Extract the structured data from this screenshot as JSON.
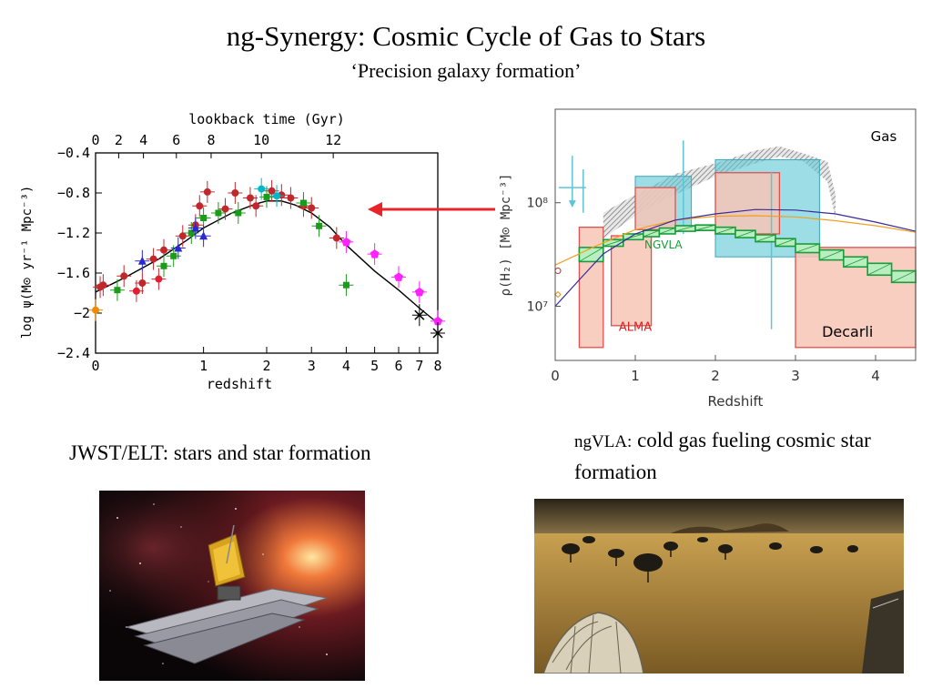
{
  "slide": {
    "title": "ng-Synergy: Cosmic Cycle of Gas to Stars",
    "subtitle": "‘Precision galaxy formation’",
    "left_caption": "JWST/ELT: stars and star formation",
    "right_caption_prefix": "ngVLA:",
    "right_caption_rest": " cold gas fueling cosmic star formation",
    "arrow_color": "#e8242b"
  },
  "chart_data": [
    {
      "type": "scatter",
      "title": "",
      "top_axis_label": "lookback time (Gyr)",
      "top_ticks": [
        "0",
        "2",
        "4",
        "6",
        "8",
        "10",
        "12"
      ],
      "top_tick_z": [
        0,
        0.16,
        0.36,
        0.68,
        1.1,
        1.9,
        3.6
      ],
      "xlabel": "redshift",
      "ylabel": "log ψ(M⊙ yr⁻¹ Mpc⁻³)",
      "xticks": [
        "0",
        "1",
        "2",
        "3",
        "4",
        "5",
        "6",
        "7",
        "8"
      ],
      "yticks": [
        "−0.4",
        "−0.8",
        "−1.2",
        "−1.6",
        "−2",
        "−2.4"
      ],
      "ytick_values": [
        -0.4,
        -0.8,
        -1.2,
        -1.6,
        -2.0,
        -2.4
      ],
      "ylim": [
        -2.4,
        -0.4
      ],
      "curve": [
        [
          0,
          -1.79
        ],
        [
          0.2,
          -1.65
        ],
        [
          0.5,
          -1.46
        ],
        [
          0.8,
          -1.27
        ],
        [
          1.0,
          -1.15
        ],
        [
          1.4,
          -1.0
        ],
        [
          1.8,
          -0.91
        ],
        [
          2.0,
          -0.88
        ],
        [
          2.3,
          -0.88
        ],
        [
          2.6,
          -0.92
        ],
        [
          3.0,
          -1.0
        ],
        [
          3.5,
          -1.14
        ],
        [
          4.0,
          -1.32
        ],
        [
          5.0,
          -1.58
        ],
        [
          6.0,
          -1.77
        ],
        [
          7.0,
          -1.95
        ],
        [
          8.0,
          -2.1
        ]
      ],
      "series": [
        {
          "color": "#c0282b",
          "marker": "circle",
          "points": [
            [
              0.03,
              -1.74
            ],
            [
              0.05,
              -1.72
            ],
            [
              0.2,
              -1.63
            ],
            [
              0.45,
              -1.46
            ],
            [
              0.55,
              -1.37
            ],
            [
              0.75,
              -1.23
            ],
            [
              0.9,
              -1.12
            ],
            [
              0.95,
              -0.93
            ],
            [
              1.05,
              -0.79
            ],
            [
              1.3,
              -0.96
            ],
            [
              1.45,
              -0.8
            ],
            [
              1.7,
              -0.85
            ],
            [
              1.8,
              -0.93
            ],
            [
              2.1,
              -0.78
            ],
            [
              2.3,
              -0.82
            ],
            [
              2.5,
              -0.85
            ],
            [
              2.8,
              -0.93
            ],
            [
              3.0,
              -0.95
            ],
            [
              3.7,
              -1.25
            ],
            [
              0.35,
              -1.7
            ]
          ]
        },
        {
          "color": "#e02030",
          "marker": "circle",
          "points": [
            [
              0.5,
              -1.66
            ],
            [
              0.3,
              -1.78
            ]
          ]
        },
        {
          "color": "#1a9c1a",
          "marker": "square",
          "points": [
            [
              0.15,
              -1.77
            ],
            [
              0.55,
              -1.53
            ],
            [
              0.65,
              -1.43
            ],
            [
              0.85,
              -1.2
            ],
            [
              1.0,
              -1.05
            ],
            [
              1.2,
              -1.0
            ],
            [
              1.5,
              -1.0
            ],
            [
              2.0,
              -0.84
            ],
            [
              2.8,
              -0.9
            ],
            [
              3.2,
              -1.13
            ],
            [
              4.0,
              -1.72
            ]
          ]
        },
        {
          "color": "#2a2ad0",
          "marker": "triangle",
          "points": [
            [
              0.35,
              -1.48
            ],
            [
              0.7,
              -1.35
            ],
            [
              1.0,
              -1.23
            ],
            [
              0.9,
              -1.15
            ]
          ]
        },
        {
          "color": "#00b8c8",
          "marker": "circle",
          "points": [
            [
              1.9,
              -0.76
            ],
            [
              2.2,
              -0.83
            ]
          ]
        },
        {
          "color": "#ff22ff",
          "marker": "pentagon",
          "points": [
            [
              4.0,
              -1.29
            ],
            [
              5.0,
              -1.41
            ],
            [
              6.0,
              -1.64
            ],
            [
              7.0,
              -1.79
            ],
            [
              8.0,
              -2.08
            ]
          ]
        },
        {
          "color": "#f08a00",
          "marker": "circle",
          "points": [
            [
              0.0,
              -1.97
            ]
          ]
        },
        {
          "color": "#000000",
          "marker": "cross",
          "points": [
            [
              7.0,
              -2.02
            ],
            [
              8.0,
              -2.2
            ]
          ]
        }
      ]
    },
    {
      "type": "area",
      "title": "",
      "xlabel": "Redshift",
      "ylabel": "ρ(H₂) [M⊙ Mpc⁻³]",
      "xticks": [
        "0",
        "1",
        "2",
        "3",
        "4"
      ],
      "yticks": [
        "10⁸",
        "10⁷"
      ],
      "ytick_values": [
        100000000,
        10000000
      ],
      "xlim": [
        0,
        4.5
      ],
      "yscale": "log",
      "ylim": [
        3000000,
        800000000
      ],
      "labels": {
        "gas": "Gas",
        "ngvla": "NGVLA",
        "alma": "ALMA",
        "decarli": "Decarli"
      },
      "blue_boxes": [
        [
          1.0,
          1.7,
          60000000,
          180000000
        ],
        [
          2.0,
          3.3,
          30000000,
          260000000
        ]
      ],
      "red_boxes": [
        [
          0.3,
          0.6,
          4000000,
          58000000
        ],
        [
          0.7,
          1.2,
          6500000,
          48000000
        ],
        [
          1.0,
          1.5,
          55000000,
          140000000
        ],
        [
          2.0,
          2.8,
          50000000,
          195000000
        ],
        [
          3.0,
          4.5,
          4000000,
          37000000
        ]
      ],
      "green_steps": [
        [
          0.3,
          0.6,
          27000000,
          37000000
        ],
        [
          0.6,
          0.85,
          38000000,
          44000000
        ],
        [
          0.85,
          1.1,
          44000000,
          50000000
        ],
        [
          1.1,
          1.3,
          47000000,
          54000000
        ],
        [
          1.3,
          1.5,
          50000000,
          57000000
        ],
        [
          1.5,
          1.75,
          53000000,
          60000000
        ],
        [
          1.75,
          2.0,
          54000000,
          61000000
        ],
        [
          2.0,
          2.25,
          50000000,
          58000000
        ],
        [
          2.25,
          2.5,
          46000000,
          54000000
        ],
        [
          2.5,
          2.75,
          42000000,
          49000000
        ],
        [
          2.75,
          3.0,
          38000000,
          45000000
        ],
        [
          3.0,
          3.3,
          33000000,
          40000000
        ],
        [
          3.3,
          3.6,
          28000000,
          35000000
        ],
        [
          3.6,
          3.9,
          24000000,
          30000000
        ],
        [
          3.9,
          4.2,
          20000000,
          26000000
        ],
        [
          4.2,
          4.5,
          17000000,
          22000000
        ]
      ],
      "blue_curve": [
        [
          0.0,
          10000000
        ],
        [
          0.3,
          18000000
        ],
        [
          0.6,
          32000000
        ],
        [
          1.0,
          50000000
        ],
        [
          1.5,
          68000000
        ],
        [
          2.0,
          78000000
        ],
        [
          2.5,
          86000000
        ],
        [
          3.0,
          85000000
        ],
        [
          3.5,
          78000000
        ],
        [
          4.0,
          65000000
        ],
        [
          4.5,
          53000000
        ]
      ],
      "orange_curve": [
        [
          0.0,
          25000000
        ],
        [
          0.5,
          38000000
        ],
        [
          1.0,
          55000000
        ],
        [
          1.5,
          68000000
        ],
        [
          2.0,
          74000000
        ],
        [
          2.5,
          75000000
        ],
        [
          3.0,
          73000000
        ],
        [
          3.5,
          67000000
        ],
        [
          4.0,
          60000000
        ],
        [
          4.5,
          52000000
        ]
      ],
      "hatch_band": [
        [
          0.6,
          45000000,
          80000000
        ],
        [
          1.0,
          75000000,
          120000000
        ],
        [
          1.5,
          120000000,
          190000000
        ],
        [
          2.0,
          180000000,
          240000000
        ],
        [
          2.5,
          240000000,
          320000000
        ],
        [
          2.8,
          280000000,
          350000000
        ],
        [
          3.1,
          250000000,
          300000000
        ],
        [
          3.4,
          160000000,
          250000000
        ],
        [
          3.5,
          70000000,
          120000000
        ]
      ],
      "vertical_lines": [
        [
          0.35,
          80000000,
          210000000
        ],
        [
          1.6,
          50000000,
          400000000
        ],
        [
          2.7,
          6000000,
          200000000
        ]
      ],
      "arrow_marker": [
        0.35,
        140000000
      ],
      "red_point": [
        0.0,
        22000000
      ],
      "orange_point": [
        0.0,
        13000000
      ]
    }
  ],
  "photos": {
    "left": "space-telescope-icon",
    "right": "radio-array-icon"
  }
}
